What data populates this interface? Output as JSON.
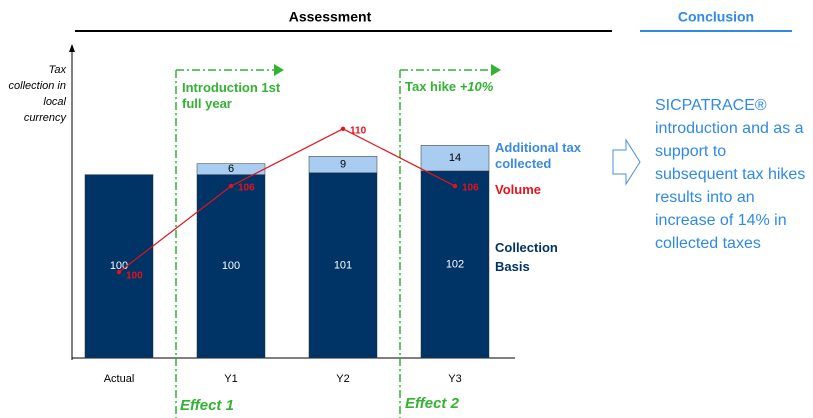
{
  "chart_data": {
    "type": "bar",
    "headers": [
      "Assessment",
      "Conclusion"
    ],
    "y_label": "Tax collection in local currency",
    "categories": [
      "Actual",
      "Y1",
      "Y2",
      "Y3"
    ],
    "ylim": [
      0,
      168
    ],
    "y2lim": [
      94,
      115.5
    ],
    "series": [
      {
        "name": "Collection Basis",
        "color": "#003366",
        "values": [
          100,
          100,
          101,
          102
        ]
      },
      {
        "name": "Additional tax collected",
        "color": "#a8cdf0",
        "label_color": "#3a8bdc",
        "values": [
          null,
          6,
          9,
          14
        ]
      },
      {
        "name": "Volume",
        "type": "line",
        "axis": "y2",
        "color": "#e3131b",
        "values": [
          100,
          106,
          110,
          106
        ]
      }
    ],
    "annotations": {
      "effect1_title": "Introduction 1st full year",
      "effect2_title": "Tax hike",
      "effect2_emphasis": "+10%",
      "effect1": "Effect 1",
      "effect2": "Effect 2"
    },
    "conclusion": "SICPATRACE® introduction and as a support to subsequent tax hikes results into an increase of 14% in collected taxes"
  }
}
